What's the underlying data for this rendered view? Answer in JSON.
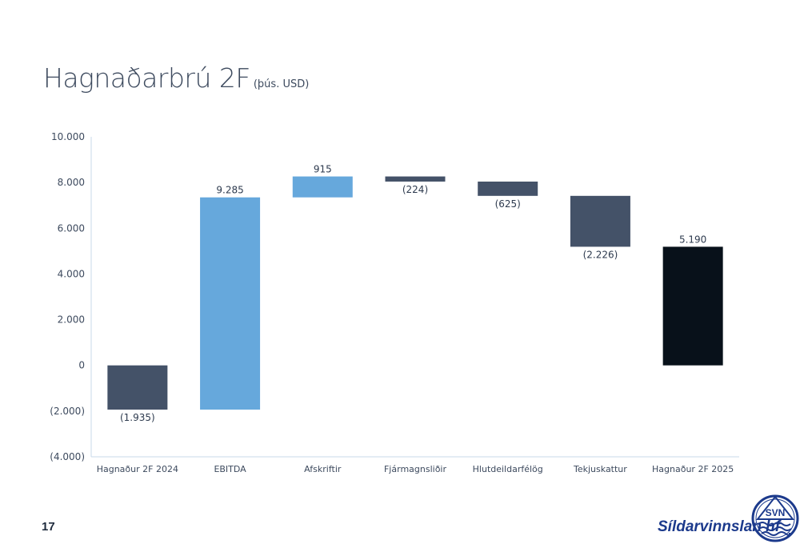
{
  "slide": {
    "title": "Hagnaðarbrú 2F",
    "title_unit": "(þús. USD)",
    "page_number": "17",
    "company_name": "Síldarvinnslan hf",
    "logo_letters": "SVN"
  },
  "colors": {
    "negative": "#445268",
    "positive": "#66a8dc",
    "total_start": "#445268",
    "total_end": "#08111a",
    "axis": "#c9d8ea",
    "text": "#3d4a5e",
    "logo_blue": "#1c3a8c"
  },
  "chart_data": {
    "type": "waterfall",
    "title": "",
    "xlabel": "",
    "ylabel": "",
    "ylim": [
      -4000,
      10000
    ],
    "yticks": [
      10000,
      8000,
      6000,
      4000,
      2000,
      0,
      -2000,
      -4000
    ],
    "ytick_labels": [
      "10.000",
      "8.000",
      "6.000",
      "4.000",
      "2.000",
      "0",
      "(2.000)",
      "(4.000)"
    ],
    "grid": false,
    "categories": [
      "Hagnaður 2F 2024",
      "EBITDA",
      "Afskriftir",
      "Fjármagnsliðir",
      "Hlutdeildarfélög",
      "Tekjuskattur",
      "Hagnaður 2F 2025"
    ],
    "values": [
      -1935,
      9285,
      915,
      -224,
      -625,
      -2226,
      5190
    ],
    "labels": [
      "(1.935)",
      "9.285",
      "915",
      "(224)",
      "(625)",
      "(2.226)",
      "5.190"
    ],
    "kinds": [
      "total",
      "delta",
      "delta",
      "delta",
      "delta",
      "delta",
      "total"
    ]
  }
}
